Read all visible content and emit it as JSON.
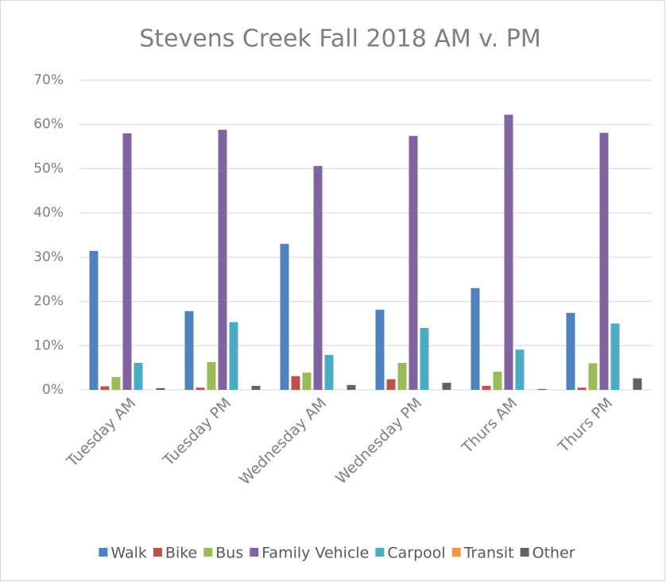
{
  "chart_data": {
    "type": "bar",
    "title": "Stevens Creek Fall 2018 AM v. PM",
    "categories": [
      "Tuesday AM",
      "Tuesday PM",
      "Wednesday AM",
      "Wednesday PM",
      "Thurs AM",
      "Thurs PM"
    ],
    "series": [
      {
        "name": "Walk",
        "color": "#4f81bd",
        "values": [
          31.4,
          17.8,
          33.0,
          18.1,
          23.0,
          17.4
        ]
      },
      {
        "name": "Bike",
        "color": "#c0504d",
        "values": [
          0.8,
          0.5,
          3.1,
          2.4,
          0.9,
          0.5
        ]
      },
      {
        "name": "Bus",
        "color": "#9bbb59",
        "values": [
          2.9,
          6.3,
          3.9,
          6.1,
          4.1,
          6.0
        ]
      },
      {
        "name": "Family Vehicle",
        "color": "#8064a2",
        "values": [
          58.0,
          58.8,
          50.6,
          57.4,
          62.2,
          58.1
        ]
      },
      {
        "name": "Carpool",
        "color": "#4bacc6",
        "values": [
          6.1,
          15.3,
          7.9,
          14.0,
          9.1,
          15.0
        ]
      },
      {
        "name": "Transit",
        "color": "#f79646",
        "values": [
          0,
          0,
          0,
          0,
          0,
          0
        ]
      },
      {
        "name": "Other",
        "color": "#636363",
        "values": [
          0.4,
          0.9,
          1.1,
          1.6,
          0.2,
          2.6
        ]
      }
    ],
    "ylim": [
      0,
      70
    ],
    "yticks": [
      {
        "value": 0,
        "label": "0%"
      },
      {
        "value": 10,
        "label": "10%"
      },
      {
        "value": 20,
        "label": "20%"
      },
      {
        "value": 30,
        "label": "30%"
      },
      {
        "value": 40,
        "label": "40%"
      },
      {
        "value": 50,
        "label": "50%"
      },
      {
        "value": 60,
        "label": "60%"
      },
      {
        "value": 70,
        "label": "70%"
      }
    ],
    "grid": true,
    "legend": "bottom"
  }
}
